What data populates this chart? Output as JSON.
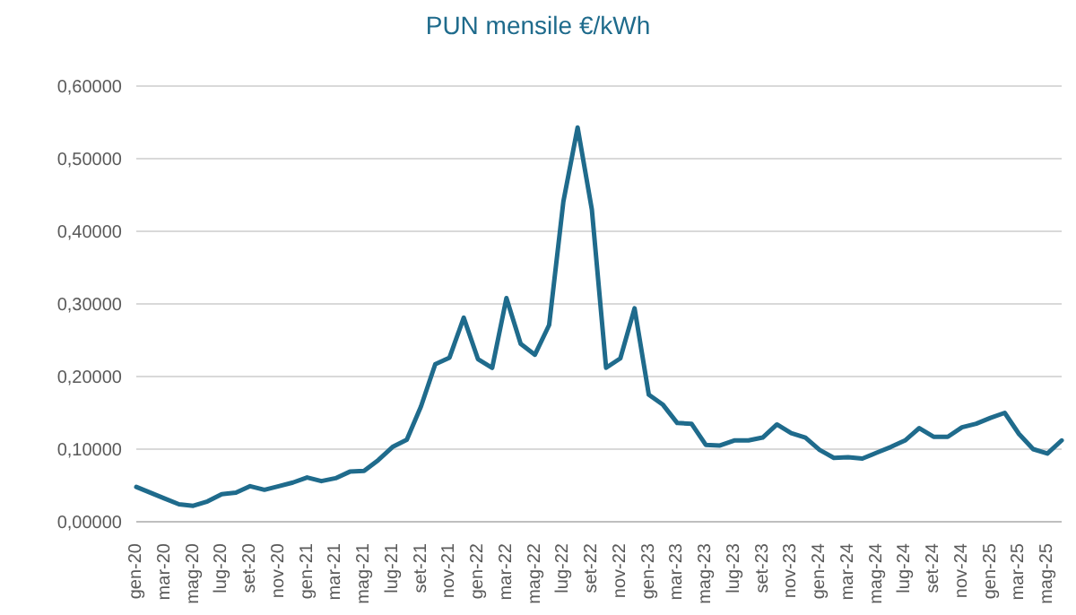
{
  "chart_data": {
    "type": "line",
    "title": "PUN mensile €/kWh",
    "categories": [
      "gen-20",
      null,
      "mar-20",
      null,
      "mag-20",
      null,
      "lug-20",
      null,
      "set-20",
      null,
      "nov-20",
      null,
      "gen-21",
      null,
      "mar-21",
      null,
      "mag-21",
      null,
      "lug-21",
      null,
      "set-21",
      null,
      "nov-21",
      null,
      "gen-22",
      null,
      "mar-22",
      null,
      "mag-22",
      null,
      "lug-22",
      null,
      "set-22",
      null,
      "nov-22",
      null,
      "gen-23",
      null,
      "mar-23",
      null,
      "mag-23",
      null,
      "lug-23",
      null,
      "set-23",
      null,
      "nov-23",
      null,
      "gen-24",
      null,
      "mar-24",
      null,
      "mag-24",
      null,
      "lug-24",
      null,
      "set-24",
      null,
      "nov-24",
      null,
      "gen-25",
      null,
      "mar-25",
      null,
      "mag-25",
      null
    ],
    "series": [
      {
        "color": "#1f6b8c",
        "values": [
          0.048,
          0.04,
          0.032,
          0.024,
          0.022,
          0.028,
          0.038,
          0.04,
          0.049,
          0.044,
          0.049,
          0.054,
          0.061,
          0.056,
          0.06,
          0.069,
          0.07,
          0.085,
          0.103,
          0.113,
          0.159,
          0.217,
          0.226,
          0.281,
          0.224,
          0.212,
          0.308,
          0.245,
          0.23,
          0.271,
          0.441,
          0.543,
          0.43,
          0.212,
          0.225,
          0.294,
          0.175,
          0.161,
          0.136,
          0.135,
          0.106,
          0.105,
          0.112,
          0.112,
          0.116,
          0.134,
          0.122,
          0.116,
          0.099,
          0.088,
          0.089,
          0.087,
          0.095,
          0.103,
          0.112,
          0.129,
          0.117,
          0.117,
          0.13,
          0.135,
          0.143,
          0.15,
          0.121,
          0.1,
          0.094,
          0.112
        ]
      }
    ],
    "ylim": [
      0,
      0.6
    ],
    "yticks": [
      {
        "value": 0,
        "label": "0,00000"
      },
      {
        "value": 0.1,
        "label": "0,10000"
      },
      {
        "value": 0.2,
        "label": "0,20000"
      },
      {
        "value": 0.3,
        "label": "0,30000"
      },
      {
        "value": 0.4,
        "label": "0,40000"
      },
      {
        "value": 0.5,
        "label": "0,50000"
      },
      {
        "value": 0.6,
        "label": "0,60000"
      }
    ],
    "grid": "y",
    "legend": false,
    "marker": "none",
    "line_style": "solid"
  }
}
